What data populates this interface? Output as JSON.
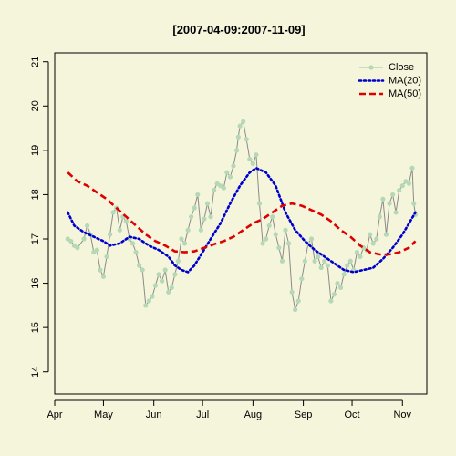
{
  "chart_data": {
    "type": "line",
    "title": "[2007-04-09:2007-11-09]",
    "xlabel": "",
    "ylabel": "",
    "x_range": [
      "2007-04-01",
      "2007-11-16"
    ],
    "ylim": [
      13.5,
      21.2
    ],
    "grid": false,
    "legend_position": "top-right",
    "x_ticks": [
      {
        "date": "2007-04-01",
        "label": "Apr"
      },
      {
        "date": "2007-05-01",
        "label": "May"
      },
      {
        "date": "2007-06-01",
        "label": "Jun"
      },
      {
        "date": "2007-07-01",
        "label": "Jul"
      },
      {
        "date": "2007-08-01",
        "label": "Aug"
      },
      {
        "date": "2007-09-01",
        "label": "Sep"
      },
      {
        "date": "2007-10-01",
        "label": "Oct"
      },
      {
        "date": "2007-11-01",
        "label": "Nov"
      }
    ],
    "y_ticks": [
      14,
      15,
      16,
      17,
      18,
      19,
      20,
      21
    ],
    "series": [
      {
        "name": "Close",
        "style": "line-points",
        "color": "#B5D8B5",
        "points": [
          [
            "2007-04-09",
            17.0
          ],
          [
            "2007-04-11",
            16.95
          ],
          [
            "2007-04-13",
            16.85
          ],
          [
            "2007-04-15",
            16.8
          ],
          [
            "2007-04-19",
            17.0
          ],
          [
            "2007-04-21",
            17.3
          ],
          [
            "2007-04-23",
            17.1
          ],
          [
            "2007-04-25",
            16.7
          ],
          [
            "2007-04-27",
            16.75
          ],
          [
            "2007-04-29",
            16.3
          ],
          [
            "2007-05-01",
            16.15
          ],
          [
            "2007-05-03",
            16.6
          ],
          [
            "2007-05-05",
            17.1
          ],
          [
            "2007-05-07",
            17.6
          ],
          [
            "2007-05-09",
            17.7
          ],
          [
            "2007-05-11",
            17.2
          ],
          [
            "2007-05-13",
            17.5
          ],
          [
            "2007-05-15",
            17.4
          ],
          [
            "2007-05-17",
            17.0
          ],
          [
            "2007-05-19",
            16.9
          ],
          [
            "2007-05-21",
            16.7
          ],
          [
            "2007-05-23",
            16.4
          ],
          [
            "2007-05-25",
            16.3
          ],
          [
            "2007-05-27",
            15.5
          ],
          [
            "2007-05-29",
            15.6
          ],
          [
            "2007-05-31",
            15.7
          ],
          [
            "2007-06-02",
            15.95
          ],
          [
            "2007-06-04",
            16.2
          ],
          [
            "2007-06-06",
            16.05
          ],
          [
            "2007-06-08",
            16.3
          ],
          [
            "2007-06-10",
            15.8
          ],
          [
            "2007-06-12",
            15.9
          ],
          [
            "2007-06-14",
            16.2
          ],
          [
            "2007-06-16",
            16.5
          ],
          [
            "2007-06-18",
            17.0
          ],
          [
            "2007-06-20",
            16.9
          ],
          [
            "2007-06-22",
            17.2
          ],
          [
            "2007-06-24",
            17.5
          ],
          [
            "2007-06-26",
            17.7
          ],
          [
            "2007-06-28",
            18.0
          ],
          [
            "2007-06-30",
            17.2
          ],
          [
            "2007-07-02",
            17.45
          ],
          [
            "2007-07-04",
            17.8
          ],
          [
            "2007-07-06",
            17.5
          ],
          [
            "2007-07-08",
            18.1
          ],
          [
            "2007-07-10",
            18.25
          ],
          [
            "2007-07-12",
            18.2
          ],
          [
            "2007-07-14",
            18.15
          ],
          [
            "2007-07-16",
            18.5
          ],
          [
            "2007-07-18",
            18.4
          ],
          [
            "2007-07-20",
            18.65
          ],
          [
            "2007-07-22",
            19.0
          ],
          [
            "2007-07-23",
            19.3
          ],
          [
            "2007-07-24",
            19.55
          ],
          [
            "2007-07-26",
            19.65
          ],
          [
            "2007-07-28",
            19.25
          ],
          [
            "2007-07-30",
            18.8
          ],
          [
            "2007-08-01",
            18.7
          ],
          [
            "2007-08-03",
            18.9
          ],
          [
            "2007-08-05",
            17.8
          ],
          [
            "2007-08-07",
            16.9
          ],
          [
            "2007-08-09",
            17.0
          ],
          [
            "2007-08-11",
            17.3
          ],
          [
            "2007-08-13",
            17.5
          ],
          [
            "2007-08-15",
            17.1
          ],
          [
            "2007-08-17",
            16.8
          ],
          [
            "2007-08-19",
            16.5
          ],
          [
            "2007-08-21",
            17.2
          ],
          [
            "2007-08-23",
            16.9
          ],
          [
            "2007-08-25",
            15.8
          ],
          [
            "2007-08-27",
            15.4
          ],
          [
            "2007-08-29",
            15.6
          ],
          [
            "2007-08-31",
            16.1
          ],
          [
            "2007-09-02",
            16.5
          ],
          [
            "2007-09-04",
            16.9
          ],
          [
            "2007-09-06",
            17.0
          ],
          [
            "2007-09-08",
            16.5
          ],
          [
            "2007-09-10",
            16.6
          ],
          [
            "2007-09-12",
            16.35
          ],
          [
            "2007-09-14",
            16.5
          ],
          [
            "2007-09-16",
            16.4
          ],
          [
            "2007-09-18",
            15.6
          ],
          [
            "2007-09-20",
            15.75
          ],
          [
            "2007-09-22",
            16.0
          ],
          [
            "2007-09-24",
            15.9
          ],
          [
            "2007-09-26",
            16.2
          ],
          [
            "2007-09-28",
            16.4
          ],
          [
            "2007-09-30",
            16.5
          ],
          [
            "2007-10-02",
            16.3
          ],
          [
            "2007-10-04",
            16.7
          ],
          [
            "2007-10-06",
            16.6
          ],
          [
            "2007-10-08",
            16.8
          ],
          [
            "2007-10-10",
            16.75
          ],
          [
            "2007-10-12",
            17.1
          ],
          [
            "2007-10-14",
            16.9
          ],
          [
            "2007-10-16",
            17.0
          ],
          [
            "2007-10-18",
            17.5
          ],
          [
            "2007-10-20",
            17.9
          ],
          [
            "2007-10-22",
            17.1
          ],
          [
            "2007-10-24",
            17.8
          ],
          [
            "2007-10-26",
            18.0
          ],
          [
            "2007-10-28",
            17.6
          ],
          [
            "2007-10-30",
            18.1
          ],
          [
            "2007-11-01",
            18.2
          ],
          [
            "2007-11-03",
            18.3
          ],
          [
            "2007-11-05",
            18.25
          ],
          [
            "2007-11-07",
            18.6
          ],
          [
            "2007-11-08",
            17.8
          ],
          [
            "2007-11-09",
            17.55
          ]
        ]
      },
      {
        "name": "MA(20)",
        "style": "dotted",
        "color": "#0000CC",
        "points": [
          [
            "2007-04-09",
            17.6
          ],
          [
            "2007-04-13",
            17.3
          ],
          [
            "2007-04-19",
            17.15
          ],
          [
            "2007-04-25",
            17.05
          ],
          [
            "2007-05-01",
            16.95
          ],
          [
            "2007-05-05",
            16.85
          ],
          [
            "2007-05-11",
            16.9
          ],
          [
            "2007-05-17",
            17.05
          ],
          [
            "2007-05-23",
            17.0
          ],
          [
            "2007-05-29",
            16.85
          ],
          [
            "2007-06-04",
            16.75
          ],
          [
            "2007-06-10",
            16.6
          ],
          [
            "2007-06-14",
            16.4
          ],
          [
            "2007-06-18",
            16.3
          ],
          [
            "2007-06-22",
            16.25
          ],
          [
            "2007-06-26",
            16.4
          ],
          [
            "2007-07-01",
            16.7
          ],
          [
            "2007-07-06",
            17.0
          ],
          [
            "2007-07-12",
            17.35
          ],
          [
            "2007-07-18",
            17.8
          ],
          [
            "2007-07-24",
            18.2
          ],
          [
            "2007-07-30",
            18.5
          ],
          [
            "2007-08-03",
            18.6
          ],
          [
            "2007-08-09",
            18.5
          ],
          [
            "2007-08-15",
            18.2
          ],
          [
            "2007-08-21",
            17.6
          ],
          [
            "2007-08-27",
            17.2
          ],
          [
            "2007-09-02",
            16.95
          ],
          [
            "2007-09-08",
            16.75
          ],
          [
            "2007-09-14",
            16.6
          ],
          [
            "2007-09-20",
            16.45
          ],
          [
            "2007-09-26",
            16.3
          ],
          [
            "2007-10-02",
            16.25
          ],
          [
            "2007-10-08",
            16.3
          ],
          [
            "2007-10-14",
            16.35
          ],
          [
            "2007-10-20",
            16.55
          ],
          [
            "2007-10-26",
            16.8
          ],
          [
            "2007-11-01",
            17.1
          ],
          [
            "2007-11-05",
            17.35
          ],
          [
            "2007-11-09",
            17.6
          ]
        ]
      },
      {
        "name": "MA(50)",
        "style": "dashed",
        "color": "#DD0000",
        "points": [
          [
            "2007-04-09",
            18.5
          ],
          [
            "2007-04-15",
            18.3
          ],
          [
            "2007-04-21",
            18.2
          ],
          [
            "2007-04-27",
            18.05
          ],
          [
            "2007-05-03",
            17.9
          ],
          [
            "2007-05-09",
            17.7
          ],
          [
            "2007-05-15",
            17.5
          ],
          [
            "2007-05-21",
            17.3
          ],
          [
            "2007-05-27",
            17.1
          ],
          [
            "2007-06-02",
            16.95
          ],
          [
            "2007-06-08",
            16.85
          ],
          [
            "2007-06-14",
            16.72
          ],
          [
            "2007-06-20",
            16.7
          ],
          [
            "2007-06-26",
            16.72
          ],
          [
            "2007-07-02",
            16.8
          ],
          [
            "2007-07-08",
            16.88
          ],
          [
            "2007-07-14",
            16.95
          ],
          [
            "2007-07-20",
            17.05
          ],
          [
            "2007-07-26",
            17.2
          ],
          [
            "2007-08-01",
            17.35
          ],
          [
            "2007-08-07",
            17.45
          ],
          [
            "2007-08-13",
            17.6
          ],
          [
            "2007-08-19",
            17.75
          ],
          [
            "2007-08-25",
            17.8
          ],
          [
            "2007-08-31",
            17.75
          ],
          [
            "2007-09-06",
            17.65
          ],
          [
            "2007-09-12",
            17.55
          ],
          [
            "2007-09-18",
            17.4
          ],
          [
            "2007-09-24",
            17.2
          ],
          [
            "2007-09-30",
            17.05
          ],
          [
            "2007-10-06",
            16.85
          ],
          [
            "2007-10-12",
            16.7
          ],
          [
            "2007-10-18",
            16.65
          ],
          [
            "2007-10-24",
            16.65
          ],
          [
            "2007-10-30",
            16.7
          ],
          [
            "2007-11-05",
            16.8
          ],
          [
            "2007-11-09",
            16.95
          ]
        ]
      }
    ]
  }
}
